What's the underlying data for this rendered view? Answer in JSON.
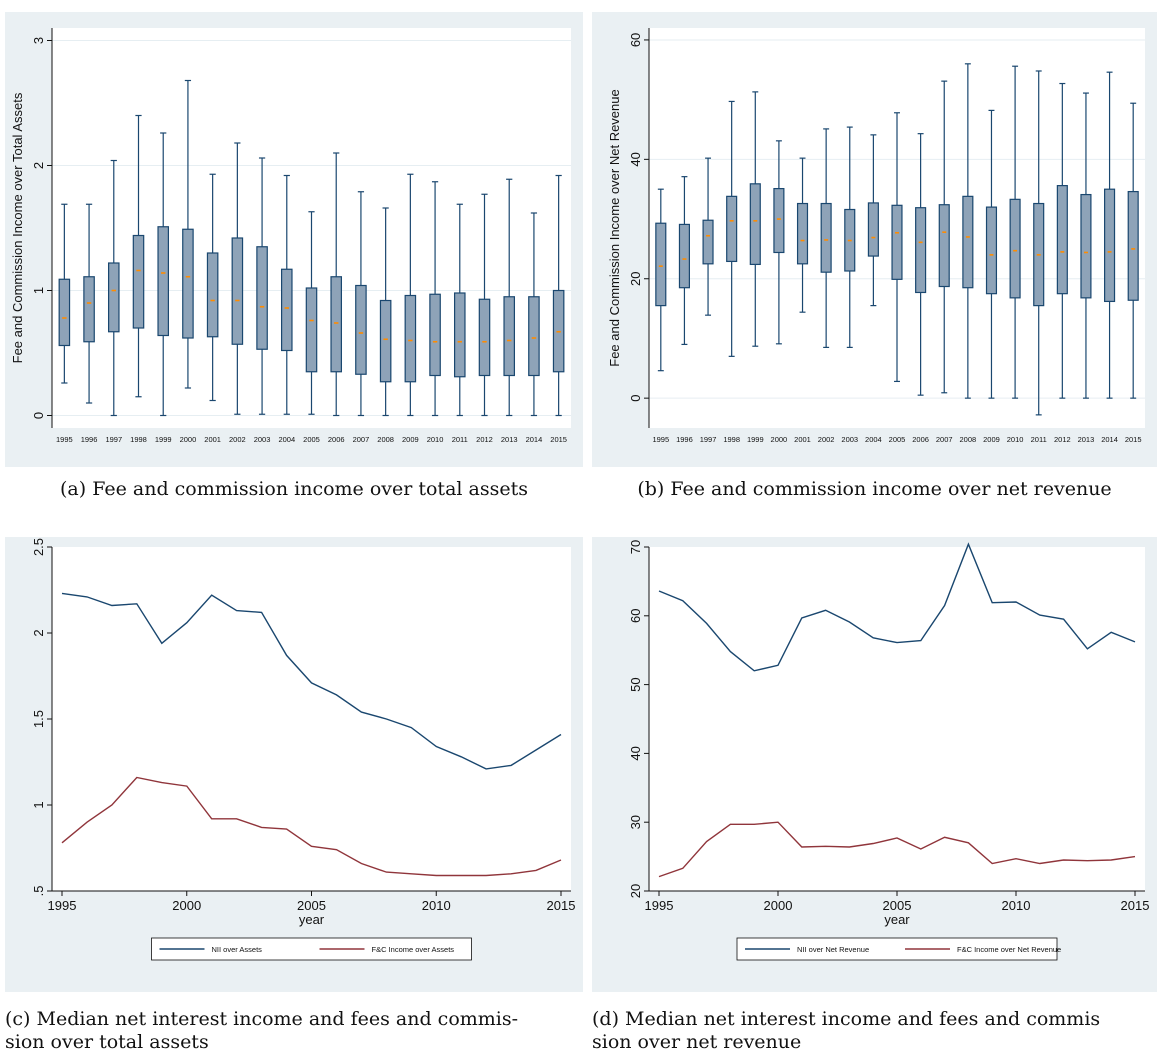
{
  "colors": {
    "panel_bg": "#eaf0f3",
    "plot_bg": "#ffffff",
    "grid": "#e6eef2",
    "box_fill": "#8ea3b8",
    "box_stroke": "#1a476f",
    "median": "#ff8c00",
    "whisker": "#1a476f",
    "line1": "#1a476f",
    "line2": "#90353b"
  },
  "captions": {
    "a": "(a) Fee and commission income over total assets",
    "b": "(b) Fee and commission income over net revenue",
    "c_line1": "(c) Median net interest income and fees and commis-",
    "c_line2": "sion over total assets",
    "d_line1": "(d) Median net interest income and fees and commis",
    "d_line2": "sion over net revenue"
  },
  "chart_data": [
    {
      "id": "a",
      "type": "box",
      "ylabel": "Fee and Commission Income over Total Assets",
      "ylim": [
        -0.1,
        3.1
      ],
      "yticks": [
        "0",
        "1",
        "2",
        "3"
      ],
      "categories": [
        "1995",
        "1996",
        "1997",
        "1998",
        "1999",
        "2000",
        "2001",
        "2002",
        "2003",
        "2004",
        "2005",
        "2006",
        "2007",
        "2008",
        "2009",
        "2010",
        "2011",
        "2012",
        "2013",
        "2014",
        "2015"
      ],
      "boxes": [
        {
          "lo": 0.26,
          "q1": 0.56,
          "med": 0.78,
          "q3": 1.09,
          "hi": 1.69
        },
        {
          "lo": 0.1,
          "q1": 0.59,
          "med": 0.9,
          "q3": 1.11,
          "hi": 1.69
        },
        {
          "lo": 0.0,
          "q1": 0.67,
          "med": 1.0,
          "q3": 1.22,
          "hi": 2.04
        },
        {
          "lo": 0.15,
          "q1": 0.7,
          "med": 1.16,
          "q3": 1.44,
          "hi": 2.4
        },
        {
          "lo": 0.0,
          "q1": 0.64,
          "med": 1.14,
          "q3": 1.51,
          "hi": 2.26
        },
        {
          "lo": 0.22,
          "q1": 0.62,
          "med": 1.11,
          "q3": 1.49,
          "hi": 2.68
        },
        {
          "lo": 0.12,
          "q1": 0.63,
          "med": 0.92,
          "q3": 1.3,
          "hi": 1.93
        },
        {
          "lo": 0.01,
          "q1": 0.57,
          "med": 0.92,
          "q3": 1.42,
          "hi": 2.18
        },
        {
          "lo": 0.01,
          "q1": 0.53,
          "med": 0.87,
          "q3": 1.35,
          "hi": 2.06
        },
        {
          "lo": 0.01,
          "q1": 0.52,
          "med": 0.86,
          "q3": 1.17,
          "hi": 1.92
        },
        {
          "lo": 0.01,
          "q1": 0.35,
          "med": 0.76,
          "q3": 1.02,
          "hi": 1.63
        },
        {
          "lo": 0.0,
          "q1": 0.35,
          "med": 0.74,
          "q3": 1.11,
          "hi": 2.1
        },
        {
          "lo": 0.0,
          "q1": 0.33,
          "med": 0.66,
          "q3": 1.04,
          "hi": 1.79
        },
        {
          "lo": 0.0,
          "q1": 0.27,
          "med": 0.61,
          "q3": 0.92,
          "hi": 1.66
        },
        {
          "lo": 0.0,
          "q1": 0.27,
          "med": 0.6,
          "q3": 0.96,
          "hi": 1.93
        },
        {
          "lo": 0.0,
          "q1": 0.32,
          "med": 0.59,
          "q3": 0.97,
          "hi": 1.87
        },
        {
          "lo": 0.0,
          "q1": 0.31,
          "med": 0.59,
          "q3": 0.98,
          "hi": 1.69
        },
        {
          "lo": 0.0,
          "q1": 0.32,
          "med": 0.59,
          "q3": 0.93,
          "hi": 1.77
        },
        {
          "lo": 0.0,
          "q1": 0.32,
          "med": 0.6,
          "q3": 0.95,
          "hi": 1.89
        },
        {
          "lo": 0.0,
          "q1": 0.32,
          "med": 0.62,
          "q3": 0.95,
          "hi": 1.62
        },
        {
          "lo": 0.0,
          "q1": 0.35,
          "med": 0.67,
          "q3": 1.0,
          "hi": 1.92
        }
      ]
    },
    {
      "id": "b",
      "type": "box",
      "ylabel": "Fee and Commission Income over Net Revenue",
      "ylim": [
        -5,
        62
      ],
      "yticks": [
        "0",
        "20",
        "40",
        "60"
      ],
      "categories": [
        "1995",
        "1996",
        "1997",
        "1998",
        "1999",
        "2000",
        "2001",
        "2002",
        "2003",
        "2004",
        "2005",
        "2006",
        "2007",
        "2008",
        "2009",
        "2010",
        "2011",
        "2012",
        "2013",
        "2014",
        "2015"
      ],
      "boxes": [
        {
          "lo": 4.6,
          "q1": 15.5,
          "med": 22.1,
          "q3": 29.3,
          "hi": 35.0
        },
        {
          "lo": 9.0,
          "q1": 18.5,
          "med": 23.3,
          "q3": 29.1,
          "hi": 37.1
        },
        {
          "lo": 13.9,
          "q1": 22.5,
          "med": 27.2,
          "q3": 29.8,
          "hi": 40.2
        },
        {
          "lo": 7.0,
          "q1": 22.9,
          "med": 29.7,
          "q3": 33.8,
          "hi": 49.7
        },
        {
          "lo": 8.7,
          "q1": 22.4,
          "med": 29.7,
          "q3": 35.9,
          "hi": 51.3
        },
        {
          "lo": 9.1,
          "q1": 24.4,
          "med": 30.0,
          "q3": 35.1,
          "hi": 43.1
        },
        {
          "lo": 14.4,
          "q1": 22.5,
          "med": 26.4,
          "q3": 32.6,
          "hi": 40.2
        },
        {
          "lo": 8.5,
          "q1": 21.1,
          "med": 26.5,
          "q3": 32.6,
          "hi": 45.1
        },
        {
          "lo": 8.5,
          "q1": 21.3,
          "med": 26.4,
          "q3": 31.6,
          "hi": 45.4
        },
        {
          "lo": 15.5,
          "q1": 23.8,
          "med": 26.9,
          "q3": 32.7,
          "hi": 44.1
        },
        {
          "lo": 2.8,
          "q1": 19.9,
          "med": 27.7,
          "q3": 32.3,
          "hi": 47.8
        },
        {
          "lo": 0.5,
          "q1": 17.7,
          "med": 26.1,
          "q3": 31.9,
          "hi": 44.3
        },
        {
          "lo": 0.9,
          "q1": 18.7,
          "med": 27.8,
          "q3": 32.4,
          "hi": 53.1
        },
        {
          "lo": 0.0,
          "q1": 18.5,
          "med": 27.0,
          "q3": 33.8,
          "hi": 56.0
        },
        {
          "lo": 0.0,
          "q1": 17.5,
          "med": 24.0,
          "q3": 32.0,
          "hi": 48.2
        },
        {
          "lo": 0.0,
          "q1": 16.8,
          "med": 24.7,
          "q3": 33.3,
          "hi": 55.6
        },
        {
          "lo": -2.8,
          "q1": 15.5,
          "med": 24.0,
          "q3": 32.6,
          "hi": 54.8
        },
        {
          "lo": 0.0,
          "q1": 17.5,
          "med": 24.5,
          "q3": 35.6,
          "hi": 52.7
        },
        {
          "lo": 0.0,
          "q1": 16.8,
          "med": 24.4,
          "q3": 34.1,
          "hi": 51.1
        },
        {
          "lo": 0.0,
          "q1": 16.2,
          "med": 24.5,
          "q3": 35.0,
          "hi": 54.6
        },
        {
          "lo": 0.0,
          "q1": 16.4,
          "med": 25.0,
          "q3": 34.6,
          "hi": 49.4
        }
      ]
    },
    {
      "id": "c",
      "type": "line",
      "xlabel": "year",
      "xlim": [
        1995,
        2015
      ],
      "xticks": [
        "1995",
        "2000",
        "2005",
        "2010",
        "2015"
      ],
      "ylim": [
        0.5,
        2.5
      ],
      "yticks": [
        ".5",
        "1",
        "1.5",
        "2",
        "2.5"
      ],
      "x": [
        1995,
        1996,
        1997,
        1998,
        1999,
        2000,
        2001,
        2002,
        2003,
        2004,
        2005,
        2006,
        2007,
        2008,
        2009,
        2010,
        2011,
        2012,
        2013,
        2014,
        2015
      ],
      "series": [
        {
          "name": "NII over Assets",
          "values": [
            2.23,
            2.21,
            2.16,
            2.17,
            1.94,
            2.06,
            2.22,
            2.13,
            2.12,
            1.87,
            1.71,
            1.64,
            1.54,
            1.5,
            1.45,
            1.34,
            1.28,
            1.21,
            1.23,
            1.32,
            1.41
          ]
        },
        {
          "name": "F&C Income over Assets",
          "values": [
            0.78,
            0.9,
            1.0,
            1.16,
            1.13,
            1.11,
            0.92,
            0.92,
            0.87,
            0.86,
            0.76,
            0.74,
            0.66,
            0.61,
            0.6,
            0.59,
            0.59,
            0.59,
            0.6,
            0.62,
            0.68
          ]
        }
      ]
    },
    {
      "id": "d",
      "type": "line",
      "xlabel": "year",
      "xlim": [
        1995,
        2015
      ],
      "xticks": [
        "1995",
        "2000",
        "2005",
        "2010",
        "2015"
      ],
      "ylim": [
        20,
        70
      ],
      "yticks": [
        "20",
        "30",
        "40",
        "50",
        "60",
        "70"
      ],
      "x": [
        1995,
        1996,
        1997,
        1998,
        1999,
        2000,
        2001,
        2002,
        2003,
        2004,
        2005,
        2006,
        2007,
        2008,
        2009,
        2010,
        2011,
        2012,
        2013,
        2014,
        2015
      ],
      "series": [
        {
          "name": "NII over Net Revenue",
          "values": [
            63.6,
            62.2,
            58.9,
            54.8,
            52.0,
            52.8,
            59.7,
            60.8,
            59.1,
            56.8,
            56.1,
            56.4,
            61.5,
            70.4,
            61.9,
            62.0,
            60.1,
            59.5,
            55.2,
            57.6,
            56.2
          ]
        },
        {
          "name": "F&C Income over Net Revenue",
          "values": [
            22.1,
            23.3,
            27.2,
            29.7,
            29.7,
            30.0,
            26.4,
            26.5,
            26.4,
            26.9,
            27.7,
            26.1,
            27.8,
            27.0,
            24.0,
            24.7,
            24.0,
            24.5,
            24.4,
            24.5,
            25.0
          ]
        }
      ]
    }
  ]
}
